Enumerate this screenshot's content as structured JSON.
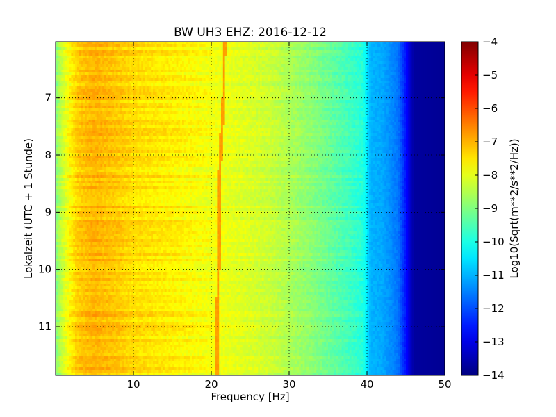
{
  "chart_data": {
    "type": "heatmap",
    "title": "BW UH3 EHZ: 2016-12-12",
    "xlabel": "Frequency [Hz]",
    "ylabel": "Lokalzeit (UTC + 1 Stunde)",
    "xlim": [
      0,
      50
    ],
    "ylim": [
      6.02,
      11.85
    ],
    "y_inverted": true,
    "x_ticks": [
      10,
      20,
      30,
      40,
      50
    ],
    "x_tick_labels": [
      "10",
      "20",
      "30",
      "40",
      "50"
    ],
    "y_ticks": [
      7,
      8,
      9,
      10,
      11
    ],
    "y_tick_labels": [
      "7",
      "8",
      "9",
      "10",
      "11"
    ],
    "grid": true,
    "colormap": "jet",
    "colorbar": {
      "label": "Log10(Sqrt(m**2/s**2/Hz))",
      "range": [
        -14,
        -4
      ],
      "ticks": [
        -4,
        -5,
        -6,
        -7,
        -8,
        -9,
        -10,
        -11,
        -12,
        -13,
        -14
      ],
      "tick_labels": [
        "−4",
        "−5",
        "−6",
        "−7",
        "−8",
        "−9",
        "−10",
        "−11",
        "−12",
        "−13",
        "−14"
      ]
    },
    "spectrum_profile": {
      "frequency_hz": [
        0.1,
        0.5,
        1,
        2,
        3,
        5,
        8,
        10,
        15,
        19,
        22,
        25,
        28,
        30,
        33,
        35,
        37,
        39.5,
        40.5,
        42,
        44,
        45,
        46,
        50
      ],
      "log10_amplitude": [
        -8.9,
        -8.5,
        -8.2,
        -7.6,
        -7.2,
        -7.0,
        -7.2,
        -7.4,
        -7.6,
        -7.8,
        -7.95,
        -8.1,
        -8.3,
        -8.55,
        -8.9,
        -9.2,
        -9.5,
        -9.9,
        -11.0,
        -11.1,
        -11.6,
        -12.6,
        -13.7,
        -13.8
      ]
    },
    "peak_line": {
      "label": "narrow-band peak",
      "log10_amplitude": -6.8,
      "time": [
        6.02,
        6.5,
        7.0,
        7.5,
        8.0,
        8.5,
        9.0,
        9.5,
        10.0,
        10.5,
        11.0,
        11.5,
        11.85
      ],
      "frequency_hz": [
        21.7,
        21.6,
        21.6,
        21.4,
        21.2,
        21.0,
        21.0,
        20.95,
        20.9,
        20.85,
        20.8,
        20.75,
        20.7
      ]
    }
  }
}
